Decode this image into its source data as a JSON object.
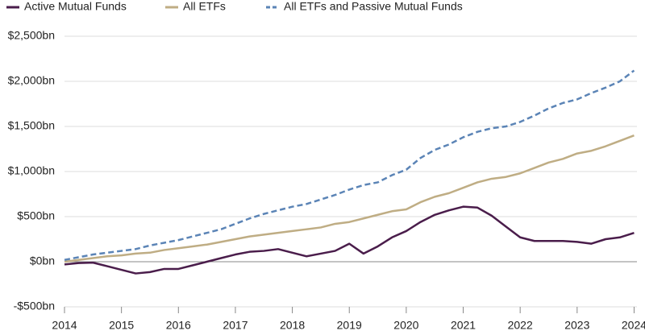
{
  "chart_data": {
    "type": "line",
    "x": [
      2014,
      2014.25,
      2014.5,
      2014.75,
      2015,
      2015.25,
      2015.5,
      2015.75,
      2016,
      2016.25,
      2016.5,
      2016.75,
      2017,
      2017.25,
      2017.5,
      2017.75,
      2018,
      2018.25,
      2018.5,
      2018.75,
      2019,
      2019.25,
      2019.5,
      2019.75,
      2020,
      2020.25,
      2020.5,
      2020.75,
      2021,
      2021.25,
      2021.5,
      2021.75,
      2022,
      2022.25,
      2022.5,
      2022.75,
      2023,
      2023.25,
      2023.5,
      2023.75,
      2024
    ],
    "series": [
      {
        "name": "Active Mutual Funds",
        "color": "#4a1d4b",
        "dashed": false,
        "values": [
          -30,
          -15,
          -10,
          -50,
          -90,
          -130,
          -115,
          -80,
          -80,
          -40,
          0,
          40,
          80,
          110,
          120,
          140,
          100,
          60,
          90,
          120,
          200,
          90,
          170,
          270,
          340,
          440,
          520,
          570,
          610,
          600,
          510,
          390,
          270,
          230,
          230,
          230,
          220,
          200,
          250,
          270,
          320
        ]
      },
      {
        "name": "All ETFs",
        "color": "#bfad84",
        "dashed": false,
        "values": [
          0,
          20,
          40,
          60,
          70,
          90,
          100,
          130,
          150,
          170,
          190,
          220,
          250,
          280,
          300,
          320,
          340,
          360,
          380,
          420,
          440,
          480,
          520,
          560,
          580,
          660,
          720,
          760,
          820,
          880,
          920,
          940,
          980,
          1040,
          1100,
          1140,
          1200,
          1230,
          1280,
          1340,
          1400
        ]
      },
      {
        "name": "All ETFs and Passive Mutual Funds",
        "color": "#5b84b6",
        "dashed": true,
        "values": [
          20,
          50,
          80,
          100,
          120,
          140,
          180,
          210,
          240,
          280,
          320,
          360,
          420,
          480,
          530,
          570,
          610,
          640,
          690,
          740,
          800,
          850,
          880,
          960,
          1020,
          1150,
          1240,
          1300,
          1380,
          1440,
          1480,
          1500,
          1550,
          1620,
          1700,
          1760,
          1800,
          1870,
          1930,
          2000,
          2120
        ]
      }
    ],
    "xlim": [
      2014,
      2024.05
    ],
    "xticks": [
      2014,
      2015,
      2016,
      2017,
      2018,
      2019,
      2020,
      2021,
      2022,
      2023,
      2024
    ],
    "ylim": [
      -500,
      2500
    ],
    "yticks": [
      {
        "value": -500,
        "label": "-$500bn"
      },
      {
        "value": 0,
        "label": "$0bn"
      },
      {
        "value": 500,
        "label": "$500bn"
      },
      {
        "value": 1000,
        "label": "$1,000bn"
      },
      {
        "value": 1500,
        "label": "$1,500bn"
      },
      {
        "value": 2000,
        "label": "$2,000bn"
      },
      {
        "value": 2500,
        "label": "$2,500bn"
      }
    ],
    "grid": true
  }
}
